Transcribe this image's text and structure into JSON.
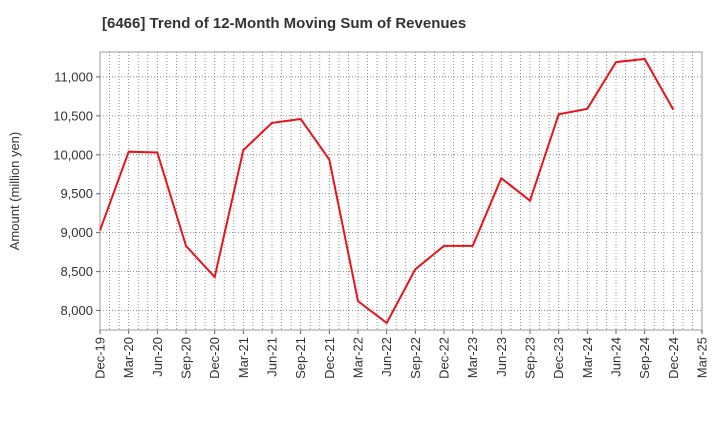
{
  "chart_data": {
    "type": "line",
    "title": "[6466]  Trend of 12-Month Moving Sum of Revenues",
    "xlabel": "",
    "ylabel": "Amount (million yen)",
    "categories": [
      "Dec-19",
      "Mar-20",
      "Jun-20",
      "Sep-20",
      "Dec-20",
      "Mar-21",
      "Jun-21",
      "Sep-21",
      "Dec-21",
      "Mar-22",
      "Jun-22",
      "Sep-22",
      "Dec-22",
      "Mar-23",
      "Jun-23",
      "Sep-23",
      "Dec-23",
      "Mar-24",
      "Jun-24",
      "Sep-24",
      "Dec-24",
      "Mar-25"
    ],
    "series": [
      {
        "color": "#e8141b",
        "values": [
          9030,
          10040,
          10030,
          8830,
          8430,
          10060,
          10410,
          10460,
          9940,
          8120,
          7840,
          8530,
          8830,
          8830,
          9700,
          9410,
          10520,
          10590,
          11190,
          11230,
          10580,
          null
        ]
      }
    ],
    "yticks": [
      8000,
      8500,
      9000,
      9500,
      10000,
      10500,
      11000
    ],
    "ytick_labels": [
      "8,000",
      "8,500",
      "9,000",
      "9,500",
      "10,000",
      "10,500",
      "11,000"
    ],
    "ylim": [
      7750,
      11320
    ],
    "grid": true
  }
}
